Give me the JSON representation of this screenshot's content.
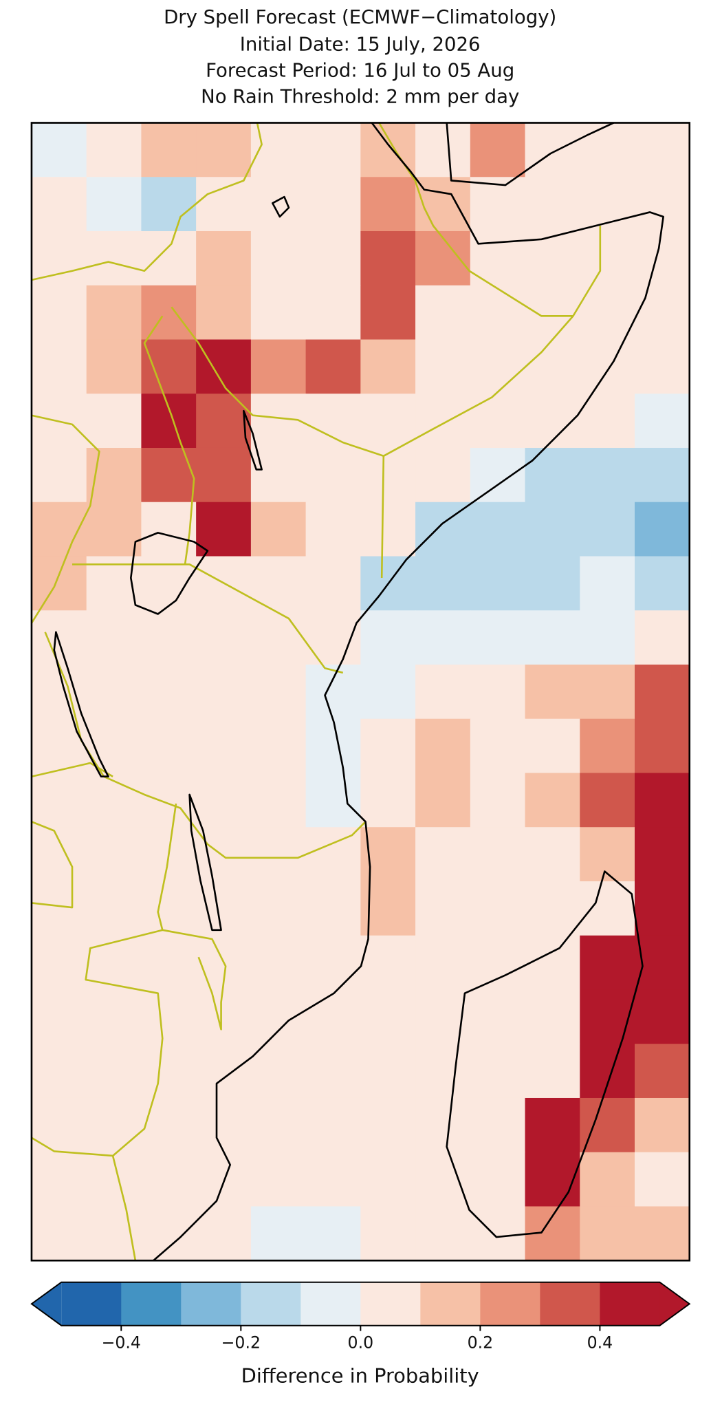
{
  "chart_data": {
    "type": "grid-map",
    "title": "Dry Spell Forecast (ECMWF−Climatology)",
    "subtitle": [
      "Initial Date: 15 July, 2026",
      "Forecast Period: 16 Jul to 05 Aug",
      "No Rain Threshold: 2 mm per day"
    ],
    "grid": {
      "values": [
        [
          -0.05,
          0.05,
          0.15,
          0.15,
          0.05,
          0.05,
          0.15,
          0.05,
          0.25,
          0.05,
          0.05,
          0.05
        ],
        [
          0.05,
          -0.05,
          -0.15,
          0.05,
          0.05,
          0.05,
          0.25,
          0.15,
          0.05,
          0.05,
          0.05,
          0.05
        ],
        [
          0.05,
          0.05,
          0.05,
          0.15,
          0.05,
          0.05,
          0.35,
          0.25,
          0.05,
          0.05,
          0.05,
          0.05
        ],
        [
          0.05,
          0.15,
          0.25,
          0.15,
          0.05,
          0.05,
          0.35,
          0.05,
          0.05,
          0.05,
          0.05,
          0.05
        ],
        [
          0.05,
          0.15,
          0.35,
          0.45,
          0.25,
          0.35,
          0.15,
          0.05,
          0.05,
          0.05,
          0.05,
          0.05
        ],
        [
          0.05,
          0.05,
          0.45,
          0.35,
          0.05,
          0.05,
          0.05,
          0.05,
          0.05,
          0.05,
          0.05,
          -0.05
        ],
        [
          0.05,
          0.15,
          0.35,
          0.35,
          0.05,
          0.05,
          0.05,
          0.05,
          -0.05,
          -0.15,
          -0.15,
          -0.15
        ],
        [
          0.15,
          0.15,
          0.05,
          0.45,
          0.15,
          0.05,
          0.05,
          -0.15,
          -0.15,
          -0.15,
          -0.15,
          -0.25
        ],
        [
          0.15,
          0.05,
          0.05,
          0.05,
          0.05,
          0.05,
          -0.15,
          -0.15,
          -0.15,
          -0.15,
          -0.05,
          -0.15
        ],
        [
          0.05,
          0.05,
          0.05,
          0.05,
          0.05,
          0.05,
          -0.05,
          -0.05,
          -0.05,
          -0.05,
          -0.05,
          0.05
        ],
        [
          0.05,
          0.05,
          0.05,
          0.05,
          0.05,
          -0.05,
          -0.05,
          0.05,
          0.05,
          0.15,
          0.15,
          0.35
        ],
        [
          0.05,
          0.05,
          0.05,
          0.05,
          0.05,
          -0.05,
          0.05,
          0.15,
          0.05,
          0.05,
          0.25,
          0.35
        ],
        [
          0.05,
          0.05,
          0.05,
          0.05,
          0.05,
          -0.05,
          0.05,
          0.15,
          0.05,
          0.15,
          0.35,
          0.45
        ],
        [
          0.05,
          0.05,
          0.05,
          0.05,
          0.05,
          0.05,
          0.15,
          0.05,
          0.05,
          0.05,
          0.15,
          0.45
        ],
        [
          0.05,
          0.05,
          0.05,
          0.05,
          0.05,
          0.05,
          0.15,
          0.05,
          0.05,
          0.05,
          0.05,
          0.45
        ],
        [
          0.05,
          0.05,
          0.05,
          0.05,
          0.05,
          0.05,
          0.05,
          0.05,
          0.05,
          0.05,
          0.45,
          0.45
        ],
        [
          0.05,
          0.05,
          0.05,
          0.05,
          0.05,
          0.05,
          0.05,
          0.05,
          0.05,
          0.05,
          0.45,
          0.45
        ],
        [
          0.05,
          0.05,
          0.05,
          0.05,
          0.05,
          0.05,
          0.05,
          0.05,
          0.05,
          0.05,
          0.45,
          0.35
        ],
        [
          0.05,
          0.05,
          0.05,
          0.05,
          0.05,
          0.05,
          0.05,
          0.05,
          0.05,
          0.45,
          0.35,
          0.15
        ],
        [
          0.05,
          0.05,
          0.05,
          0.05,
          0.05,
          0.05,
          0.05,
          0.05,
          0.05,
          0.45,
          0.15,
          0.05
        ],
        [
          0.05,
          0.05,
          0.05,
          0.05,
          -0.05,
          -0.05,
          0.05,
          0.05,
          0.05,
          0.25,
          0.15,
          0.15
        ]
      ]
    },
    "colorbar": {
      "levels": [
        -0.5,
        -0.4,
        -0.3,
        -0.2,
        -0.1,
        0,
        0.1,
        0.2,
        0.3,
        0.4,
        0.5
      ],
      "colors": [
        "#2166ac",
        "#4393c3",
        "#7fb8da",
        "#bad9ea",
        "#e7eff4",
        "#fbe8df",
        "#f6c1a7",
        "#ea9279",
        "#d0574c",
        "#b2182b"
      ],
      "extend": "both",
      "ticks": [
        {
          "value": -0.4,
          "label": "−0.4"
        },
        {
          "value": -0.2,
          "label": "−0.2"
        },
        {
          "value": 0,
          "label": "0.0"
        },
        0.2,
        0.4
      ],
      "label": "Difference in Probability"
    }
  }
}
